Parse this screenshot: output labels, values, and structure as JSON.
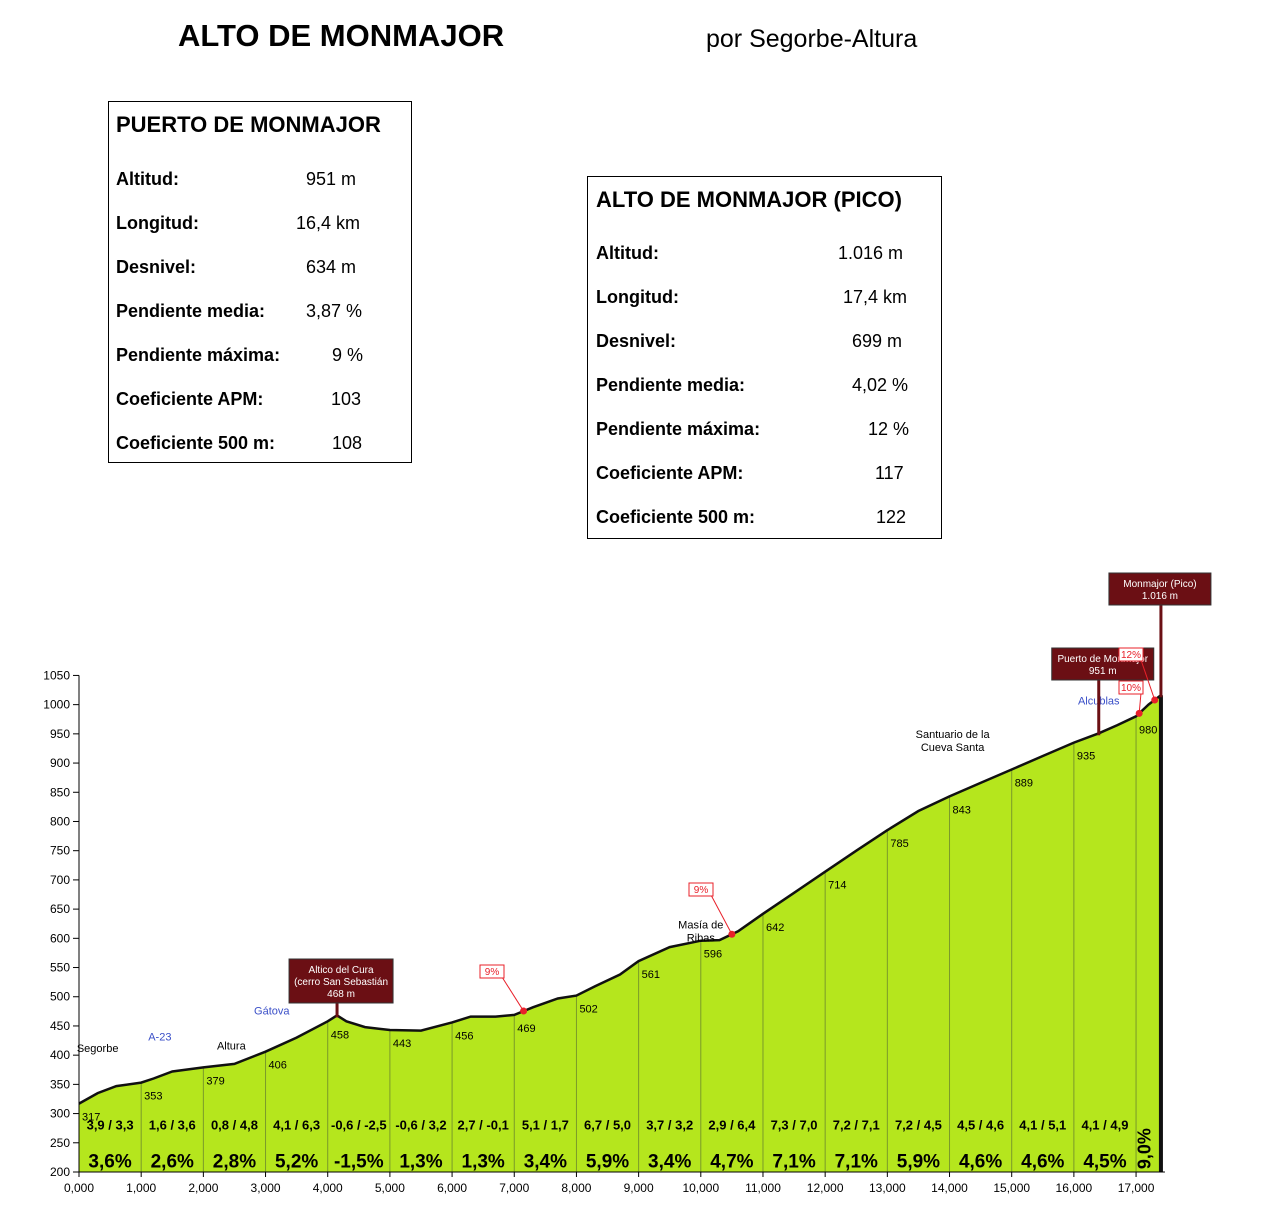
{
  "header": {
    "title": "ALTO DE MONMAJOR",
    "subtitle": "por Segorbe-Altura"
  },
  "box_puerto": {
    "title": "PUERTO DE MONMAJOR",
    "rows": [
      {
        "label": "Altitud:",
        "value": "951 m"
      },
      {
        "label": "Longitud:",
        "value": "16,4 km"
      },
      {
        "label": "Desnivel:",
        "value": "634 m"
      },
      {
        "label": "Pendiente media:",
        "value": "3,87 %"
      },
      {
        "label": "Pendiente máxima:",
        "value": "9 %"
      },
      {
        "label": "Coeficiente APM:",
        "value": "103"
      },
      {
        "label": "Coeficiente 500 m:",
        "value": "108"
      }
    ]
  },
  "box_pico": {
    "title": "ALTO DE MONMAJOR (PICO)",
    "rows": [
      {
        "label": "Altitud:",
        "value": "1.016 m"
      },
      {
        "label": "Longitud:",
        "value": "17,4 km"
      },
      {
        "label": "Desnivel:",
        "value": "699 m"
      },
      {
        "label": "Pendiente media:",
        "value": "4,02 %"
      },
      {
        "label": "Pendiente máxima:",
        "value": "12 %"
      },
      {
        "label": "Coeficiente APM:",
        "value": "117"
      },
      {
        "label": "Coeficiente 500 m:",
        "value": "122"
      }
    ]
  },
  "chart_data": {
    "type": "area",
    "xlim": [
      0,
      17400
    ],
    "ylim": [
      200,
      1050
    ],
    "y_ticks": [
      "1050",
      "1000",
      "950",
      "900",
      "850",
      "800",
      "750",
      "700",
      "650",
      "600",
      "550",
      "500",
      "450",
      "400",
      "350",
      "300",
      "250",
      "200"
    ],
    "x_ticks": [
      "0,000",
      "1,000",
      "2,000",
      "3,000",
      "4,000",
      "5,000",
      "6,000",
      "7,000",
      "8,000",
      "9,000",
      "10,000",
      "11,000",
      "12,000",
      "13,000",
      "14,000",
      "15,000",
      "16,000",
      "17,000"
    ],
    "profile": [
      [
        0,
        317
      ],
      [
        300,
        335
      ],
      [
        600,
        347
      ],
      [
        1000,
        353
      ],
      [
        1200,
        360
      ],
      [
        1500,
        372
      ],
      [
        2000,
        379
      ],
      [
        2500,
        385
      ],
      [
        3000,
        406
      ],
      [
        3500,
        430
      ],
      [
        4000,
        458
      ],
      [
        4150,
        468
      ],
      [
        4300,
        458
      ],
      [
        4600,
        448
      ],
      [
        5000,
        443
      ],
      [
        5500,
        442
      ],
      [
        6000,
        456
      ],
      [
        6300,
        466
      ],
      [
        6700,
        466
      ],
      [
        7000,
        469
      ],
      [
        7300,
        482
      ],
      [
        7700,
        497
      ],
      [
        8000,
        502
      ],
      [
        8300,
        518
      ],
      [
        8700,
        538
      ],
      [
        9000,
        561
      ],
      [
        9500,
        585
      ],
      [
        10000,
        596
      ],
      [
        10300,
        597
      ],
      [
        10600,
        612
      ],
      [
        11000,
        642
      ],
      [
        11500,
        678
      ],
      [
        12000,
        714
      ],
      [
        12500,
        750
      ],
      [
        13000,
        785
      ],
      [
        13500,
        818
      ],
      [
        14000,
        843
      ],
      [
        14500,
        866
      ],
      [
        15000,
        889
      ],
      [
        15500,
        912
      ],
      [
        16000,
        935
      ],
      [
        16400,
        951
      ],
      [
        16700,
        965
      ],
      [
        17000,
        980
      ],
      [
        17200,
        1000
      ],
      [
        17400,
        1016
      ]
    ],
    "points": [
      {
        "x": 0,
        "label": "317"
      },
      {
        "x": 1000,
        "label": "353"
      },
      {
        "x": 2000,
        "label": "379"
      },
      {
        "x": 3000,
        "label": "406"
      },
      {
        "x": 4000,
        "label": "458"
      },
      {
        "x": 5000,
        "label": "443"
      },
      {
        "x": 6000,
        "label": "456"
      },
      {
        "x": 7000,
        "label": "469"
      },
      {
        "x": 8000,
        "label": "502"
      },
      {
        "x": 9000,
        "label": "561"
      },
      {
        "x": 10000,
        "label": "596"
      },
      {
        "x": 11000,
        "label": "642"
      },
      {
        "x": 12000,
        "label": "714"
      },
      {
        "x": 13000,
        "label": "785"
      },
      {
        "x": 14000,
        "label": "843"
      },
      {
        "x": 15000,
        "label": "889"
      },
      {
        "x": 16000,
        "label": "935"
      },
      {
        "x": 17000,
        "label": "980"
      }
    ],
    "segments": [
      {
        "x0": 0,
        "x1": 1000,
        "mm": "3,9 / 3,3",
        "avg": "3,6%"
      },
      {
        "x0": 1000,
        "x1": 2000,
        "mm": "1,6 / 3,6",
        "avg": "2,6%"
      },
      {
        "x0": 2000,
        "x1": 3000,
        "mm": "0,8 / 4,8",
        "avg": "2,8%"
      },
      {
        "x0": 3000,
        "x1": 4000,
        "mm": "4,1 / 6,3",
        "avg": "5,2%"
      },
      {
        "x0": 4000,
        "x1": 5000,
        "mm": "-0,6 / -2,5",
        "avg": "-1,5%"
      },
      {
        "x0": 5000,
        "x1": 6000,
        "mm": "-0,6 / 3,2",
        "avg": "1,3%"
      },
      {
        "x0": 6000,
        "x1": 7000,
        "mm": "2,7 / -0,1",
        "avg": "1,3%"
      },
      {
        "x0": 7000,
        "x1": 8000,
        "mm": "5,1 / 1,7",
        "avg": "3,4%"
      },
      {
        "x0": 8000,
        "x1": 9000,
        "mm": "6,7 / 5,0",
        "avg": "5,9%"
      },
      {
        "x0": 9000,
        "x1": 10000,
        "mm": "3,7 / 3,2",
        "avg": "3,4%"
      },
      {
        "x0": 10000,
        "x1": 11000,
        "mm": "2,9 / 6,4",
        "avg": "4,7%"
      },
      {
        "x0": 11000,
        "x1": 12000,
        "mm": "7,3 / 7,0",
        "avg": "7,1%"
      },
      {
        "x0": 12000,
        "x1": 13000,
        "mm": "7,2 / 7,1",
        "avg": "7,1%"
      },
      {
        "x0": 13000,
        "x1": 14000,
        "mm": "7,2 / 4,5",
        "avg": "5,9%"
      },
      {
        "x0": 14000,
        "x1": 15000,
        "mm": "4,5 / 4,6",
        "avg": "4,6%"
      },
      {
        "x0": 15000,
        "x1": 16000,
        "mm": "4,1 / 5,1",
        "avg": "4,6%"
      },
      {
        "x0": 16000,
        "x1": 17000,
        "mm": "4,1 / 4,9",
        "avg": "4,5%"
      }
    ],
    "last_segment_avg": "9,0%",
    "place_labels": [
      {
        "x": 300,
        "y": 405,
        "text": "Segorbe",
        "color": "#000000"
      },
      {
        "x": 1300,
        "y": 425,
        "text": "A-23",
        "color": "#3a4fc8"
      },
      {
        "x": 2450,
        "y": 410,
        "text": "Altura",
        "color": "#000000"
      },
      {
        "x": 3100,
        "y": 470,
        "text": "Gátova",
        "color": "#3a4fc8"
      },
      {
        "x": 16400,
        "y": 1000,
        "text": "Alcublas",
        "color": "#3a4fc8"
      }
    ],
    "multi_labels": [
      {
        "x": 10000,
        "y": 617,
        "lines": [
          "Masía de",
          "Ribas"
        ]
      },
      {
        "x": 14050,
        "y": 943,
        "lines": [
          "Santuario de la",
          "Cueva Santa"
        ]
      }
    ],
    "summits": [
      {
        "x": 4150,
        "y": 468,
        "lines": [
          "Altico del Cura",
          "(cerro San Sebastián",
          "468 m"
        ]
      },
      {
        "x": 16400,
        "y": 951,
        "lines": [
          "Puerto de Monmajor",
          "951 m"
        ]
      },
      {
        "x": 17400,
        "y": 1016,
        "lines": [
          "Monmajor (Pico)",
          "1.016 m"
        ]
      }
    ],
    "gradient_flags": [
      {
        "x": 7150,
        "text": "9%"
      },
      {
        "x": 10500,
        "text": "9%"
      },
      {
        "x": 17050,
        "text": "10%"
      },
      {
        "x": 17300,
        "text": "12%"
      }
    ]
  }
}
